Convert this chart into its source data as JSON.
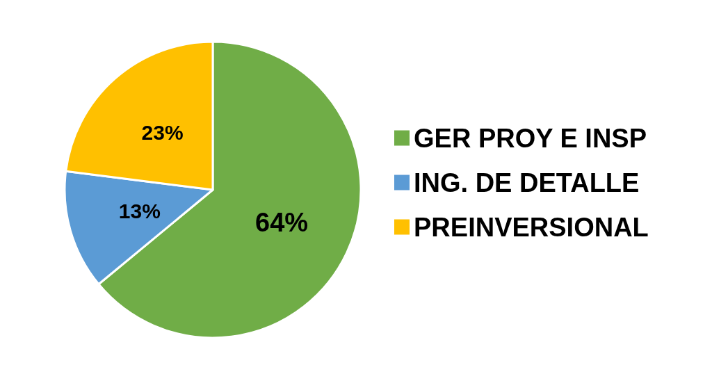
{
  "chart_data": {
    "type": "pie",
    "categories": [
      "GER PROY E INSP",
      "ING. DE DETALLE",
      "PREINVERSIONAL"
    ],
    "values": [
      64,
      13,
      23
    ],
    "colors": [
      "#70ad47",
      "#5b9bd5",
      "#ffc000"
    ],
    "value_labels": [
      "64%",
      "13%",
      "23%"
    ],
    "legend": "right"
  }
}
